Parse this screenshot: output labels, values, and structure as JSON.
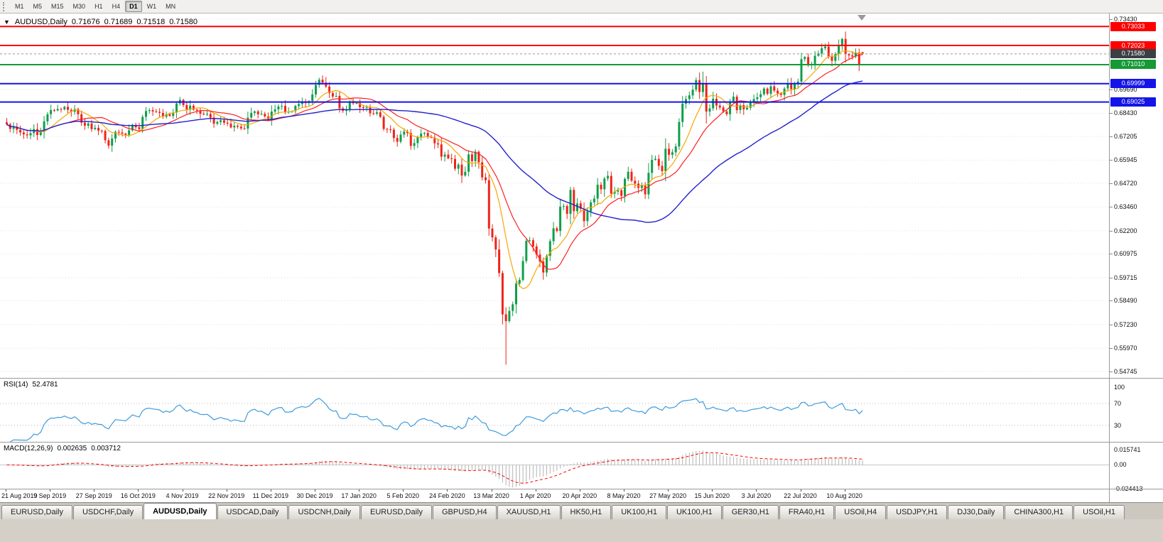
{
  "toolbar": {
    "timeframes": [
      "M1",
      "M5",
      "M15",
      "M30",
      "H1",
      "H4",
      "D1",
      "W1",
      "MN"
    ],
    "active": "D1"
  },
  "header": {
    "symbol_period": "AUDUSD,Daily",
    "open": "0.71676",
    "high": "0.71689",
    "low": "0.71518",
    "close": "0.71580"
  },
  "rsi_panel": {
    "name": "RSI(14)",
    "value": "52.4781",
    "period": 14,
    "axis_labels": [
      "100",
      "70",
      "30"
    ],
    "upper": 70,
    "lower": 30,
    "color": "#3f9bdc"
  },
  "macd_panel": {
    "name": "MACD(12,26,9)",
    "main": "0.002635",
    "signal": "0.003712",
    "fast": 12,
    "slow": 26,
    "signal_period": 9,
    "axis_labels": [
      "0.015741",
      "0.00",
      "-0.024413"
    ],
    "hist_color": "#b3b3b3",
    "signal_color": "#fe0000"
  },
  "price_axis": {
    "labels": [
      "0.73430",
      "0.69690",
      "0.68430",
      "0.67205",
      "0.65945",
      "0.64720",
      "0.63460",
      "0.62200",
      "0.60975",
      "0.59715",
      "0.58490",
      "0.57230",
      "0.55970",
      "0.54745"
    ]
  },
  "chart_data": {
    "type": "candlestick",
    "symbol": "AUDUSD",
    "timeframe": "Daily",
    "ylim": [
      0.544,
      0.7372
    ],
    "x_tick_labels": [
      "21 Aug 2019",
      "9 Sep 2019",
      "27 Sep 2019",
      "16 Oct 2019",
      "4 Nov 2019",
      "22 Nov 2019",
      "11 Dec 2019",
      "30 Dec 2019",
      "17 Jan 2020",
      "5 Feb 2020",
      "24 Feb 2020",
      "13 Mar 2020",
      "1 Apr 2020",
      "20 Apr 2020",
      "8 May 2020",
      "27 May 2020",
      "15 Jun 2020",
      "3 Jul 2020",
      "22 Jul 2020",
      "10 Aug 2020"
    ],
    "bars_per_tick": 13,
    "levels": [
      {
        "price": 0.73033,
        "label": "0.73033",
        "color": "#fe0000",
        "kind": "resistance"
      },
      {
        "price": 0.72023,
        "label": "0.72023",
        "color": "#fe0000",
        "kind": "resistance"
      },
      {
        "price": 0.7101,
        "label": "0.71010",
        "color": "#159a35",
        "kind": "support"
      },
      {
        "price": 0.69999,
        "label": "0.69999",
        "color": "#1414e8",
        "kind": "support"
      },
      {
        "price": 0.69025,
        "label": "0.69025",
        "color": "#1414e8",
        "kind": "support"
      }
    ],
    "bid": {
      "price": 0.7158,
      "label": "0.71580",
      "badge_color": "#3c3f44"
    },
    "ma_periods": {
      "fast": 9,
      "mid": 18,
      "slow": 50
    },
    "colors": {
      "up": "#0f9e4a",
      "down": "#ee2419",
      "ma_fast": "#f5a800",
      "ma_mid": "#fe1f1f",
      "ma_slow": "#2222cc",
      "grid": "#dedede"
    },
    "closes": [
      0.6785,
      0.676,
      0.6772,
      0.6755,
      0.6741,
      0.6731,
      0.6726,
      0.6738,
      0.6759,
      0.6728,
      0.6744,
      0.68,
      0.6838,
      0.686,
      0.6858,
      0.6866,
      0.6864,
      0.6877,
      0.6861,
      0.6851,
      0.6865,
      0.6838,
      0.6793,
      0.6777,
      0.6789,
      0.6759,
      0.6766,
      0.6751,
      0.6749,
      0.67,
      0.6671,
      0.6709,
      0.6745,
      0.6741,
      0.6735,
      0.6729,
      0.6753,
      0.6782,
      0.6769,
      0.6759,
      0.6824,
      0.6855,
      0.686,
      0.6853,
      0.685,
      0.6845,
      0.6825,
      0.6838,
      0.6829,
      0.6847,
      0.6895,
      0.6914,
      0.6886,
      0.6863,
      0.6883,
      0.6862,
      0.6857,
      0.684,
      0.6838,
      0.684,
      0.682,
      0.6788,
      0.6797,
      0.6806,
      0.6793,
      0.6788,
      0.6768,
      0.6777,
      0.6772,
      0.6763,
      0.6762,
      0.682,
      0.6845,
      0.6853,
      0.6838,
      0.684,
      0.6826,
      0.6811,
      0.6852,
      0.6864,
      0.6879,
      0.6882,
      0.685,
      0.6851,
      0.6854,
      0.6882,
      0.6892,
      0.6901,
      0.6897,
      0.6908,
      0.6943,
      0.6993,
      0.7021,
      0.7006,
      0.6985,
      0.695,
      0.6932,
      0.6935,
      0.6869,
      0.6856,
      0.686,
      0.6903,
      0.6896,
      0.6897,
      0.6875,
      0.6872,
      0.6876,
      0.6843,
      0.6841,
      0.6848,
      0.6824,
      0.676,
      0.6758,
      0.6756,
      0.6712,
      0.6692,
      0.673,
      0.6746,
      0.6738,
      0.667,
      0.6685,
      0.6718,
      0.6735,
      0.6739,
      0.6717,
      0.6715,
      0.6684,
      0.6678,
      0.6613,
      0.6624,
      0.6604,
      0.6601,
      0.6549,
      0.6571,
      0.6513,
      0.6533,
      0.6625,
      0.6589,
      0.6639,
      0.6583,
      0.6503,
      0.6488,
      0.6232,
      0.6185,
      0.6121,
      0.5996,
      0.5777,
      0.5741,
      0.5795,
      0.583,
      0.594,
      0.596,
      0.606,
      0.6167,
      0.617,
      0.6137,
      0.6094,
      0.6057,
      0.5999,
      0.6087,
      0.6165,
      0.6233,
      0.6219,
      0.6348,
      0.6351,
      0.631,
      0.6437,
      0.6324,
      0.6365,
      0.6337,
      0.6271,
      0.6323,
      0.6371,
      0.6391,
      0.6464,
      0.644,
      0.6497,
      0.6511,
      0.6417,
      0.6428,
      0.6435,
      0.6405,
      0.6495,
      0.6533,
      0.6485,
      0.647,
      0.6447,
      0.6462,
      0.6413,
      0.6527,
      0.6596,
      0.6601,
      0.6564,
      0.6536,
      0.6655,
      0.6623,
      0.6636,
      0.6667,
      0.6797,
      0.6894,
      0.6918,
      0.6938,
      0.6968,
      0.7019,
      0.6956,
      0.7,
      0.6852,
      0.6869,
      0.692,
      0.6884,
      0.6874,
      0.6853,
      0.6838,
      0.6906,
      0.6931,
      0.686,
      0.6886,
      0.6864,
      0.6872,
      0.6903,
      0.6918,
      0.6928,
      0.6944,
      0.6974,
      0.6946,
      0.6986,
      0.6963,
      0.6948,
      0.694,
      0.6974,
      0.7002,
      0.6971,
      0.6997,
      0.7011,
      0.713,
      0.7141,
      0.7098,
      0.7105,
      0.7148,
      0.716,
      0.7188,
      0.7196,
      0.7143,
      0.7121,
      0.7157,
      0.72,
      0.7237,
      0.7156,
      0.715,
      0.7144,
      0.7164,
      0.71,
      0.7158
    ],
    "ohlc_overrides": {
      "92": [
        0.6993,
        0.7032,
        0.6978,
        0.7021
      ],
      "147": [
        0.5777,
        0.5815,
        0.551,
        0.5741
      ],
      "205": [
        0.6956,
        0.7064,
        0.693,
        0.7
      ],
      "246": [
        0.72,
        0.7243,
        0.7178,
        0.7237
      ],
      "252": [
        0.71676,
        0.71689,
        0.71518,
        0.7158
      ]
    }
  },
  "tabs": {
    "items": [
      "EURUSD,Daily",
      "USDCHF,Daily",
      "AUDUSD,Daily",
      "USDCAD,Daily",
      "USDCNH,Daily",
      "EURUSD,Daily",
      "GBPUSD,H4",
      "XAUUSD,H1",
      "HK50,H1",
      "UK100,H1",
      "UK100,H1",
      "GER30,H1",
      "FRA40,H1",
      "USOil,H4",
      "USDJPY,H1",
      "DJ30,Daily",
      "CHINA300,H1",
      "USOil,H1"
    ],
    "active_index": 2
  }
}
